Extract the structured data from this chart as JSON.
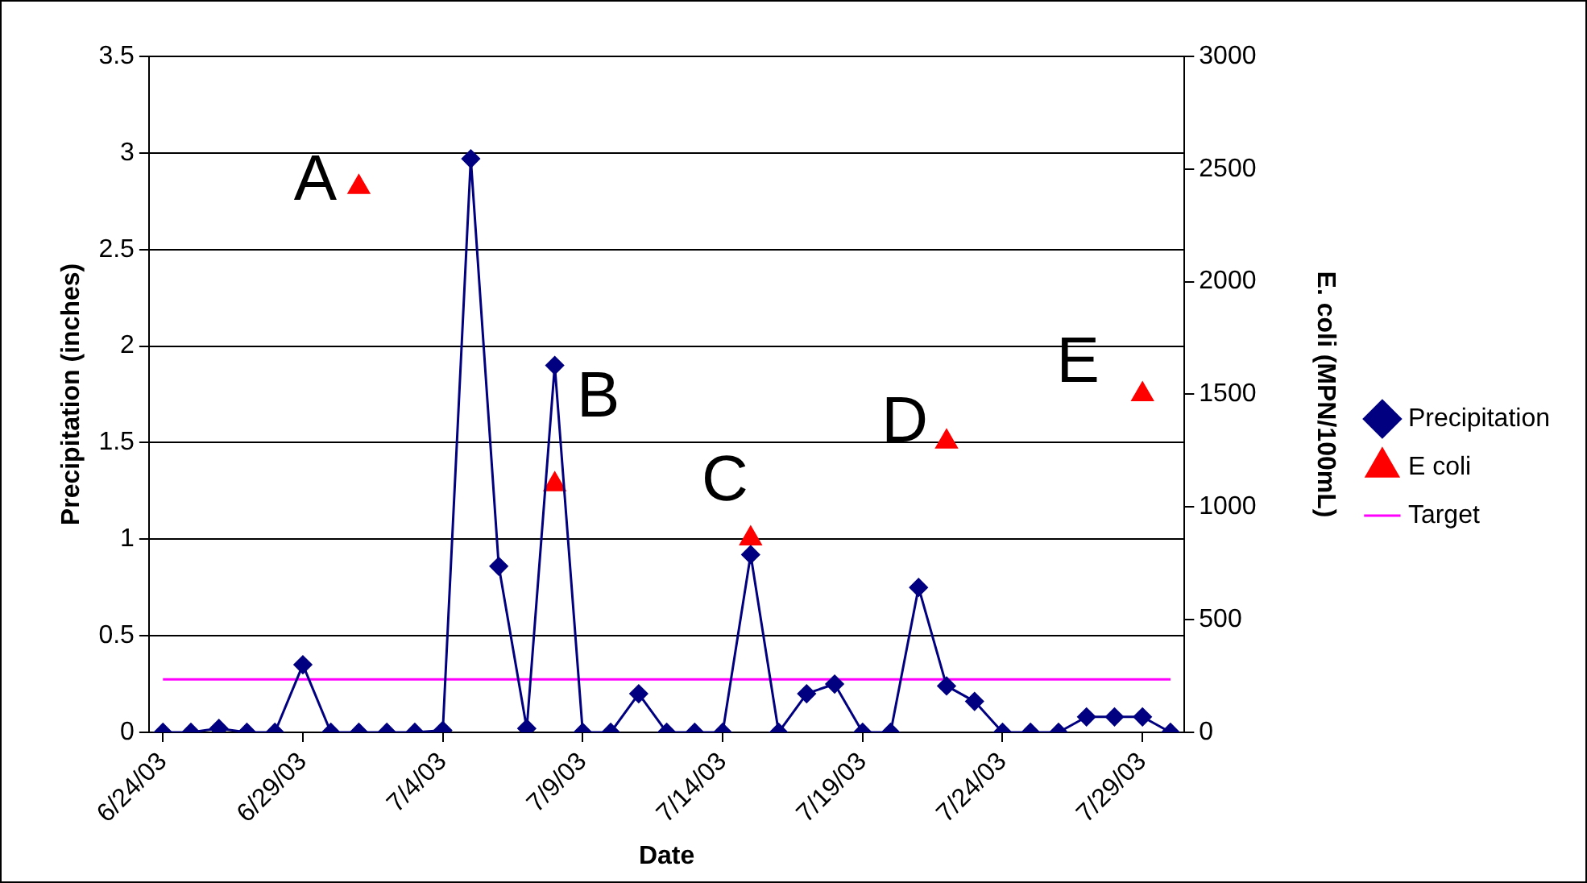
{
  "chart_data": {
    "type": "line",
    "xlabel": "Date",
    "ylabel": "Precipitation (inches)",
    "y2label": "E. coli (MPN/100mL)",
    "x": [
      "--06-24",
      "--06-25",
      "--06-26",
      "--06-27",
      "--06-28",
      "--06-29",
      "--06-30",
      "--07-01",
      "--07-02",
      "--07-03",
      "--07-04",
      "--07-05",
      "--07-06",
      "--07-07",
      "--07-08",
      "--07-09",
      "--07-10",
      "--07-11",
      "--07-12",
      "--07-13",
      "--07-14",
      "--07-15",
      "--07-16",
      "--07-17",
      "--07-18",
      "--07-19",
      "--07-20",
      "--07-21",
      "--07-22",
      "--07-23",
      "--07-24",
      "--07-25",
      "--07-26",
      "--07-27",
      "--07-28",
      "--07-29",
      "--07-30"
    ],
    "series": [
      {
        "name": "Precipitation",
        "type": "line",
        "color": "#000080",
        "marker": "diamond",
        "values": [
          0,
          0,
          0.02,
          0,
          0,
          0.35,
          0,
          0,
          0,
          0,
          0.01,
          2.97,
          0.86,
          0.02,
          1.9,
          0,
          0,
          0.2,
          0,
          0,
          0,
          0.92,
          0,
          0.2,
          0.25,
          0,
          0,
          0.75,
          0.24,
          0.16,
          0,
          0,
          0,
          0.08,
          0.08,
          0.08,
          0
        ]
      },
      {
        "name": "E coli",
        "type": "scatter",
        "color": "#ff0000",
        "marker": "triangle",
        "axis": "y2",
        "values": [
          null,
          null,
          null,
          null,
          null,
          null,
          null,
          2420,
          null,
          null,
          null,
          null,
          null,
          null,
          1100,
          null,
          null,
          null,
          null,
          null,
          null,
          860,
          null,
          null,
          null,
          null,
          null,
          null,
          1290,
          null,
          null,
          null,
          null,
          null,
          null,
          1500,
          null
        ]
      },
      {
        "name": "Target",
        "type": "line",
        "color": "#ff00ff",
        "marker": "none",
        "axis": "y2",
        "values": [
          235,
          235,
          235,
          235,
          235,
          235,
          235,
          235,
          235,
          235,
          235,
          235,
          235,
          235,
          235,
          235,
          235,
          235,
          235,
          235,
          235,
          235,
          235,
          235,
          235,
          235,
          235,
          235,
          235,
          235,
          235,
          235,
          235,
          235,
          235,
          235,
          235
        ]
      }
    ],
    "xlim": [
      "--06-23T12:00",
      "--07-30T12:00"
    ],
    "xticks": [
      {
        "value": "--06-24",
        "label": "6/24/03"
      },
      {
        "value": "--06-29",
        "label": "6/29/03"
      },
      {
        "value": "--07-04",
        "label": "7/4/03"
      },
      {
        "value": "--07-09",
        "label": "7/9/03"
      },
      {
        "value": "--07-14",
        "label": "7/14/03"
      },
      {
        "value": "--07-19",
        "label": "7/19/03"
      },
      {
        "value": "--07-24",
        "label": "7/24/03"
      },
      {
        "value": "--07-29",
        "label": "7/29/03"
      }
    ],
    "ylim": [
      0,
      3.5
    ],
    "yticks": [
      0,
      0.5,
      1,
      1.5,
      2,
      2.5,
      3,
      3.5
    ],
    "y2lim": [
      0,
      3000
    ],
    "y2ticks": [
      0,
      500,
      1000,
      1500,
      2000,
      2500,
      3000
    ],
    "annotations": [
      "A",
      "B",
      "C",
      "D",
      "E"
    ],
    "grid": "y",
    "legend": "right",
    "line_style": "solid"
  }
}
